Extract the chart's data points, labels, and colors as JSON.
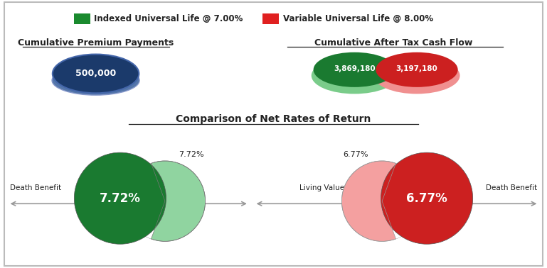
{
  "legend_iul_label": "Indexed Universal Life @ 7.00%",
  "legend_vul_label": "Variable Universal Life @ 8.00%",
  "legend_iul_color": "#1a8a2e",
  "legend_vul_color": "#e02020",
  "section1_title": "Cumulative Premium Payments",
  "section2_title": "Cumulative After Tax Cash Flow",
  "section3_title": "Comparison of Net Rates of Return",
  "premium_value": "500,000",
  "premium_color": "#1b3a6b",
  "premium_shadow_color": "#5577aa",
  "cashflow_iul_value": "3,869,180",
  "cashflow_vul_value": "3,197,180",
  "cashflow_iul_dark": "#1a7a30",
  "cashflow_iul_light": "#7acc8a",
  "cashflow_vul_dark": "#cc2020",
  "cashflow_vul_light": "#f09090",
  "iul_rate": "7.72%",
  "vul_rate": "6.77%",
  "iul_green_dark": "#1a7a30",
  "iul_green_light": "#90d4a0",
  "vul_red_dark": "#cc2020",
  "vul_red_light": "#f4a0a0",
  "arrow_color": "#999999",
  "text_white": "#ffffff",
  "text_dark": "#222222",
  "bg_color": "#ffffff",
  "border_color": "#bbbbbb"
}
